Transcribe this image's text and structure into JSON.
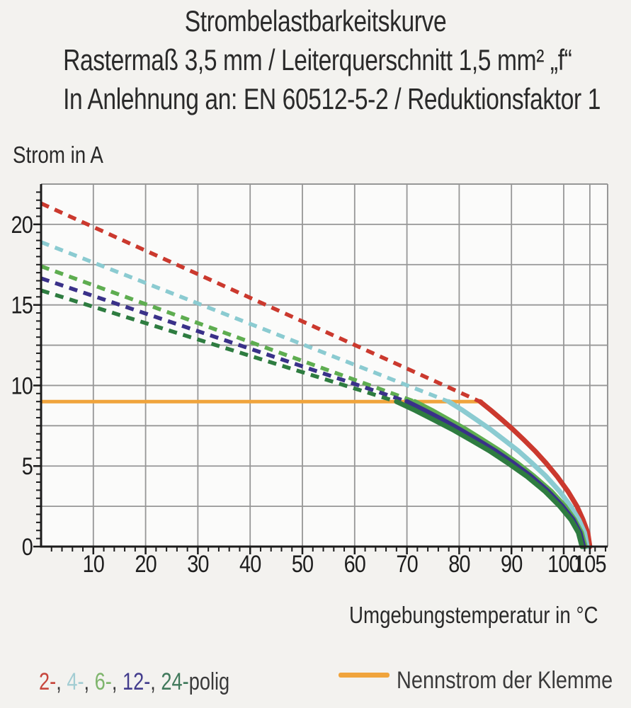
{
  "title": {
    "line1": "Strombelastbarkeitskurve",
    "line2": "Rastermaß 3,5 mm / Leiterquerschnitt 1,5 mm² „f“",
    "line3": "In Anlehnung an: EN 60512-5-2 / Reduktionsfaktor 1"
  },
  "chart_data": {
    "type": "line",
    "title": "Strombelastbarkeitskurve",
    "x_axis": {
      "label": "Umgebungstemperatur in °C",
      "min": 0,
      "max": 108.4,
      "major_ticks": [
        10,
        20,
        30,
        40,
        50,
        60,
        70,
        80,
        90,
        100,
        105
      ],
      "minor_step": 2,
      "grid": true
    },
    "y_axis": {
      "label": "Strom in A",
      "min": 0,
      "max": 22.5,
      "major_ticks": [
        0,
        5,
        10,
        15,
        20
      ],
      "grid_step": 2.5,
      "minor_step": 0.5,
      "grid": true
    },
    "nennstrom": {
      "label": "Nennstrom der Klemme",
      "value": 9,
      "x_start": 0,
      "x_end": 84.5,
      "color": "#F0A43C"
    },
    "series": [
      {
        "name": "2-polig",
        "color": "#CB392E",
        "dashed": [
          [
            0,
            21.3
          ],
          [
            84,
            9
          ]
        ],
        "solid": [
          [
            84,
            9
          ],
          [
            86.1,
            8.45
          ],
          [
            88.2,
            7.87
          ],
          [
            90.3,
            7.27
          ],
          [
            92.4,
            6.62
          ],
          [
            94.5,
            5.94
          ],
          [
            96.6,
            5.19
          ],
          [
            98.7,
            4.37
          ],
          [
            100.8,
            3.43
          ],
          [
            102.5,
            2.52
          ],
          [
            103.7,
            1.66
          ],
          [
            104.6,
            0.86
          ],
          [
            105,
            0
          ]
        ]
      },
      {
        "name": "4-polig",
        "color": "#8BCBD1",
        "dashed": [
          [
            0,
            18.9
          ],
          [
            78,
            9
          ]
        ],
        "solid": [
          [
            78,
            9
          ],
          [
            80.7,
            8.45
          ],
          [
            83.3,
            7.87
          ],
          [
            86,
            7.27
          ],
          [
            88.6,
            6.62
          ],
          [
            91.3,
            5.94
          ],
          [
            93.9,
            5.19
          ],
          [
            96.6,
            4.37
          ],
          [
            99.2,
            3.43
          ],
          [
            101.3,
            2.52
          ],
          [
            102.9,
            1.66
          ],
          [
            104,
            0.86
          ],
          [
            104.5,
            0
          ]
        ]
      },
      {
        "name": "6-polig",
        "color": "#5EAD50",
        "dashed": [
          [
            0,
            17.4
          ],
          [
            71.5,
            9
          ]
        ],
        "solid": [
          [
            71.5,
            9
          ],
          [
            74.8,
            8.45
          ],
          [
            78,
            7.87
          ],
          [
            81.3,
            7.27
          ],
          [
            84.5,
            6.62
          ],
          [
            87.8,
            5.94
          ],
          [
            91.1,
            5.19
          ],
          [
            94.3,
            4.37
          ],
          [
            97.6,
            3.43
          ],
          [
            100.2,
            2.52
          ],
          [
            102.1,
            1.66
          ],
          [
            103.4,
            0.86
          ],
          [
            104.1,
            0
          ]
        ]
      },
      {
        "name": "12-polig",
        "color": "#3A3189",
        "dashed": [
          [
            0,
            16.65
          ],
          [
            70,
            9
          ]
        ],
        "solid": [
          [
            70,
            9
          ],
          [
            73.4,
            8.45
          ],
          [
            76.8,
            7.87
          ],
          [
            80.1,
            7.27
          ],
          [
            83.5,
            6.62
          ],
          [
            86.9,
            5.94
          ],
          [
            90.3,
            5.19
          ],
          [
            93.7,
            4.37
          ],
          [
            97,
            3.43
          ],
          [
            99.7,
            2.52
          ],
          [
            101.8,
            1.66
          ],
          [
            103.1,
            0.86
          ],
          [
            103.8,
            0
          ]
        ]
      },
      {
        "name": "24-polig",
        "color": "#2E7C40",
        "dashed": [
          [
            0,
            15.9
          ],
          [
            68,
            9
          ]
        ],
        "solid": [
          [
            68,
            9
          ],
          [
            71.6,
            8.45
          ],
          [
            75.1,
            7.87
          ],
          [
            78.7,
            7.27
          ],
          [
            82.2,
            6.62
          ],
          [
            85.8,
            5.94
          ],
          [
            89.3,
            5.19
          ],
          [
            92.9,
            4.37
          ],
          [
            96.4,
            3.43
          ],
          [
            99.2,
            2.52
          ],
          [
            101.4,
            1.66
          ],
          [
            102.8,
            0.86
          ],
          [
            103.5,
            0
          ]
        ]
      }
    ]
  },
  "legend": {
    "separator": ", ",
    "suffix": "polig",
    "suffix_color": "#3A3A3A",
    "items": [
      {
        "label": "2-",
        "color": "#C7463C"
      },
      {
        "label": "4-",
        "color": "#A3CDD3"
      },
      {
        "label": "6-",
        "color": "#7EB56C"
      },
      {
        "label": "12-",
        "color": "#433D8D"
      },
      {
        "label": "24-",
        "color": "#40795B"
      }
    ]
  },
  "colors": {
    "grid": "#979797",
    "axis": "#1c1c1c",
    "plot_background": "#fbfbfa"
  }
}
